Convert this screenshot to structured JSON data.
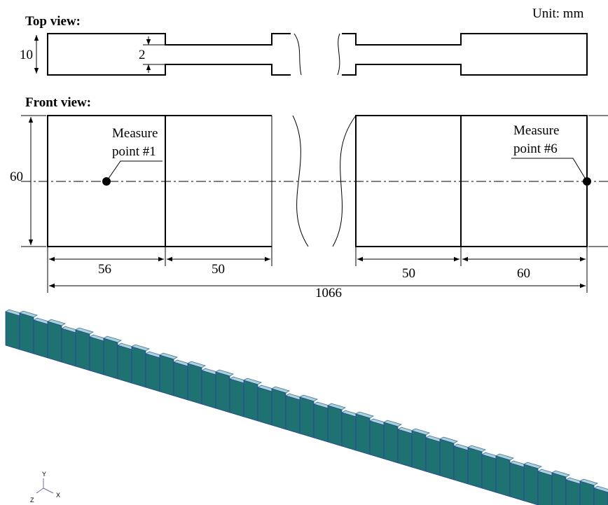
{
  "unit": "Unit: mm",
  "top_view": {
    "title": "Top view:",
    "width_label": 10,
    "neck_label": 2
  },
  "front_view": {
    "title": "Front view:",
    "height_label": 60,
    "measure_points": [
      {
        "line1": "Measure",
        "line2": "point #1"
      },
      {
        "line1": "Measure",
        "line2": "point #6"
      }
    ],
    "dimensions": [
      56,
      50,
      50,
      60
    ],
    "total": 1066
  },
  "model_view": {
    "axes": [
      "Y",
      "Z",
      "X"
    ]
  }
}
